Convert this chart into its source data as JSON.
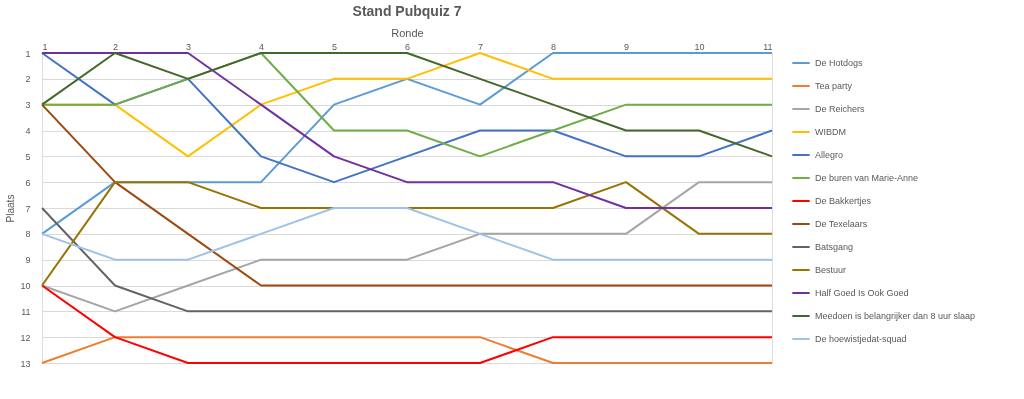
{
  "chart_data": {
    "type": "line",
    "title": "Stand Pubquiz 7",
    "xlabel": "Ronde",
    "ylabel": "Plaats",
    "x": [
      1,
      2,
      3,
      4,
      5,
      6,
      7,
      8,
      9,
      10,
      11
    ],
    "xlim": [
      1,
      11
    ],
    "xticks": [
      1,
      2,
      3,
      4,
      5,
      6,
      7,
      8,
      9,
      10,
      11
    ],
    "ylim": [
      13,
      1
    ],
    "yticks": [
      1,
      2,
      3,
      4,
      5,
      6,
      7,
      8,
      9,
      10,
      11,
      12,
      13
    ],
    "grid": "y",
    "legend": "right",
    "marker": "none",
    "line_style": "solid",
    "series": [
      {
        "name": "De Hotdogs",
        "color": "#5b9bd5",
        "values": [
          8,
          6,
          6,
          6,
          3,
          2,
          3,
          1,
          1,
          1,
          1
        ]
      },
      {
        "name": "Tea party",
        "color": "#ed7d31",
        "values": [
          13,
          12,
          12,
          12,
          12,
          12,
          12,
          13,
          13,
          13,
          13
        ]
      },
      {
        "name": "De Reichers",
        "color": "#a5a5a5",
        "values": [
          10,
          11,
          10,
          9,
          9,
          9,
          8,
          8,
          8,
          6,
          6
        ]
      },
      {
        "name": "WIBDM",
        "color": "#ffc000",
        "values": [
          3,
          3,
          5,
          3,
          2,
          2,
          1,
          2,
          2,
          2,
          2
        ]
      },
      {
        "name": "Allegro",
        "color": "#4472c4",
        "values": [
          1,
          3,
          2,
          5,
          6,
          5,
          4,
          4,
          5,
          5,
          4
        ]
      },
      {
        "name": "De buren van Marie-Anne",
        "color": "#70ad47",
        "values": [
          3,
          3,
          2,
          1,
          4,
          4,
          5,
          4,
          3,
          3,
          3
        ]
      },
      {
        "name": "De Bakkertjes",
        "color": "#ff0000",
        "values": [
          10,
          12,
          13,
          13,
          13,
          13,
          13,
          12,
          12,
          12,
          12
        ]
      },
      {
        "name": "De Texelaars",
        "color": "#9e480e",
        "values": [
          3,
          6,
          8,
          10,
          10,
          10,
          10,
          10,
          10,
          10,
          10
        ]
      },
      {
        "name": "Batsgang",
        "color": "#636363",
        "values": [
          7,
          10,
          11,
          11,
          11,
          11,
          11,
          11,
          11,
          11,
          11
        ]
      },
      {
        "name": "Bestuur",
        "color": "#997300",
        "values": [
          10,
          6,
          6,
          7,
          7,
          7,
          7,
          7,
          6,
          8,
          8
        ]
      },
      {
        "name": "Half Goed Is Ook Goed",
        "color": "#7030a0",
        "values": [
          1,
          1,
          1,
          3,
          5,
          6,
          6,
          6,
          7,
          7,
          7
        ]
      },
      {
        "name": "Meedoen is belangrijker dan 8 uur slaap",
        "color": "#43682b",
        "values": [
          3,
          1,
          2,
          1,
          1,
          1,
          2,
          3,
          4,
          4,
          5
        ]
      },
      {
        "name": "De hoewistjedat-squad",
        "color": "#9dc3e6",
        "values": [
          8,
          9,
          9,
          8,
          7,
          7,
          8,
          9,
          9,
          9,
          9
        ]
      }
    ]
  }
}
